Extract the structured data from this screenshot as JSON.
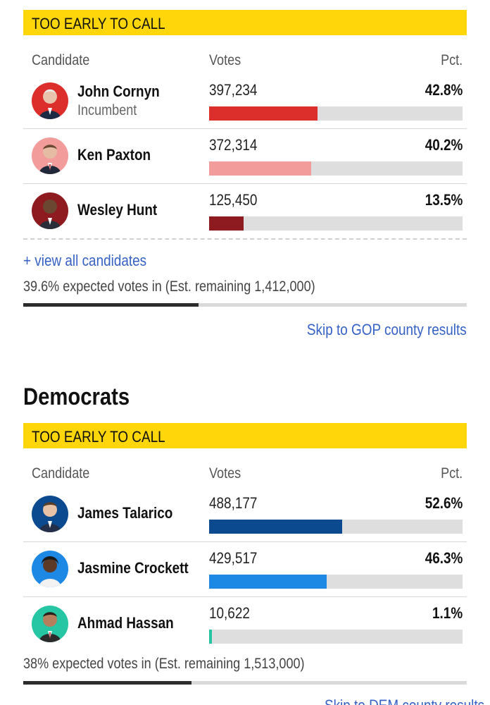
{
  "gop": {
    "status": "TOO EARLY TO CALL",
    "headers": {
      "candidate": "Candidate",
      "votes": "Votes",
      "pct": "Pct."
    },
    "candidates": [
      {
        "name": "John Cornyn",
        "subtitle": "Incumbent",
        "votes": "397,234",
        "pct": "42.8%",
        "pct_value": 42.8,
        "color": "#dc2e2b"
      },
      {
        "name": "Ken Paxton",
        "subtitle": "",
        "votes": "372,314",
        "pct": "40.2%",
        "pct_value": 40.2,
        "color": "#f29c9c"
      },
      {
        "name": "Wesley Hunt",
        "subtitle": "",
        "votes": "125,450",
        "pct": "13.5%",
        "pct_value": 13.5,
        "color": "#8e1b1f"
      }
    ],
    "view_all_link": "+ view all candidates",
    "expected": "39.6% expected votes in (Est. remaining 1,412,000)",
    "expected_value": 39.6,
    "skip_link": "Skip to GOP county results"
  },
  "dem": {
    "title": "Democrats",
    "status": "TOO EARLY TO CALL",
    "headers": {
      "candidate": "Candidate",
      "votes": "Votes",
      "pct": "Pct."
    },
    "candidates": [
      {
        "name": "James Talarico",
        "subtitle": "",
        "votes": "488,177",
        "pct": "52.6%",
        "pct_value": 52.6,
        "color": "#0c4a8f"
      },
      {
        "name": "Jasmine Crockett",
        "subtitle": "",
        "votes": "429,517",
        "pct": "46.3%",
        "pct_value": 46.3,
        "color": "#1e88e5"
      },
      {
        "name": "Ahmad Hassan",
        "subtitle": "",
        "votes": "10,622",
        "pct": "1.1%",
        "pct_value": 1.1,
        "color": "#26c6a4"
      }
    ],
    "expected": "38% expected votes in (Est. remaining 1,513,000)",
    "expected_value": 38,
    "skip_link": "Skip to DEM county results"
  }
}
